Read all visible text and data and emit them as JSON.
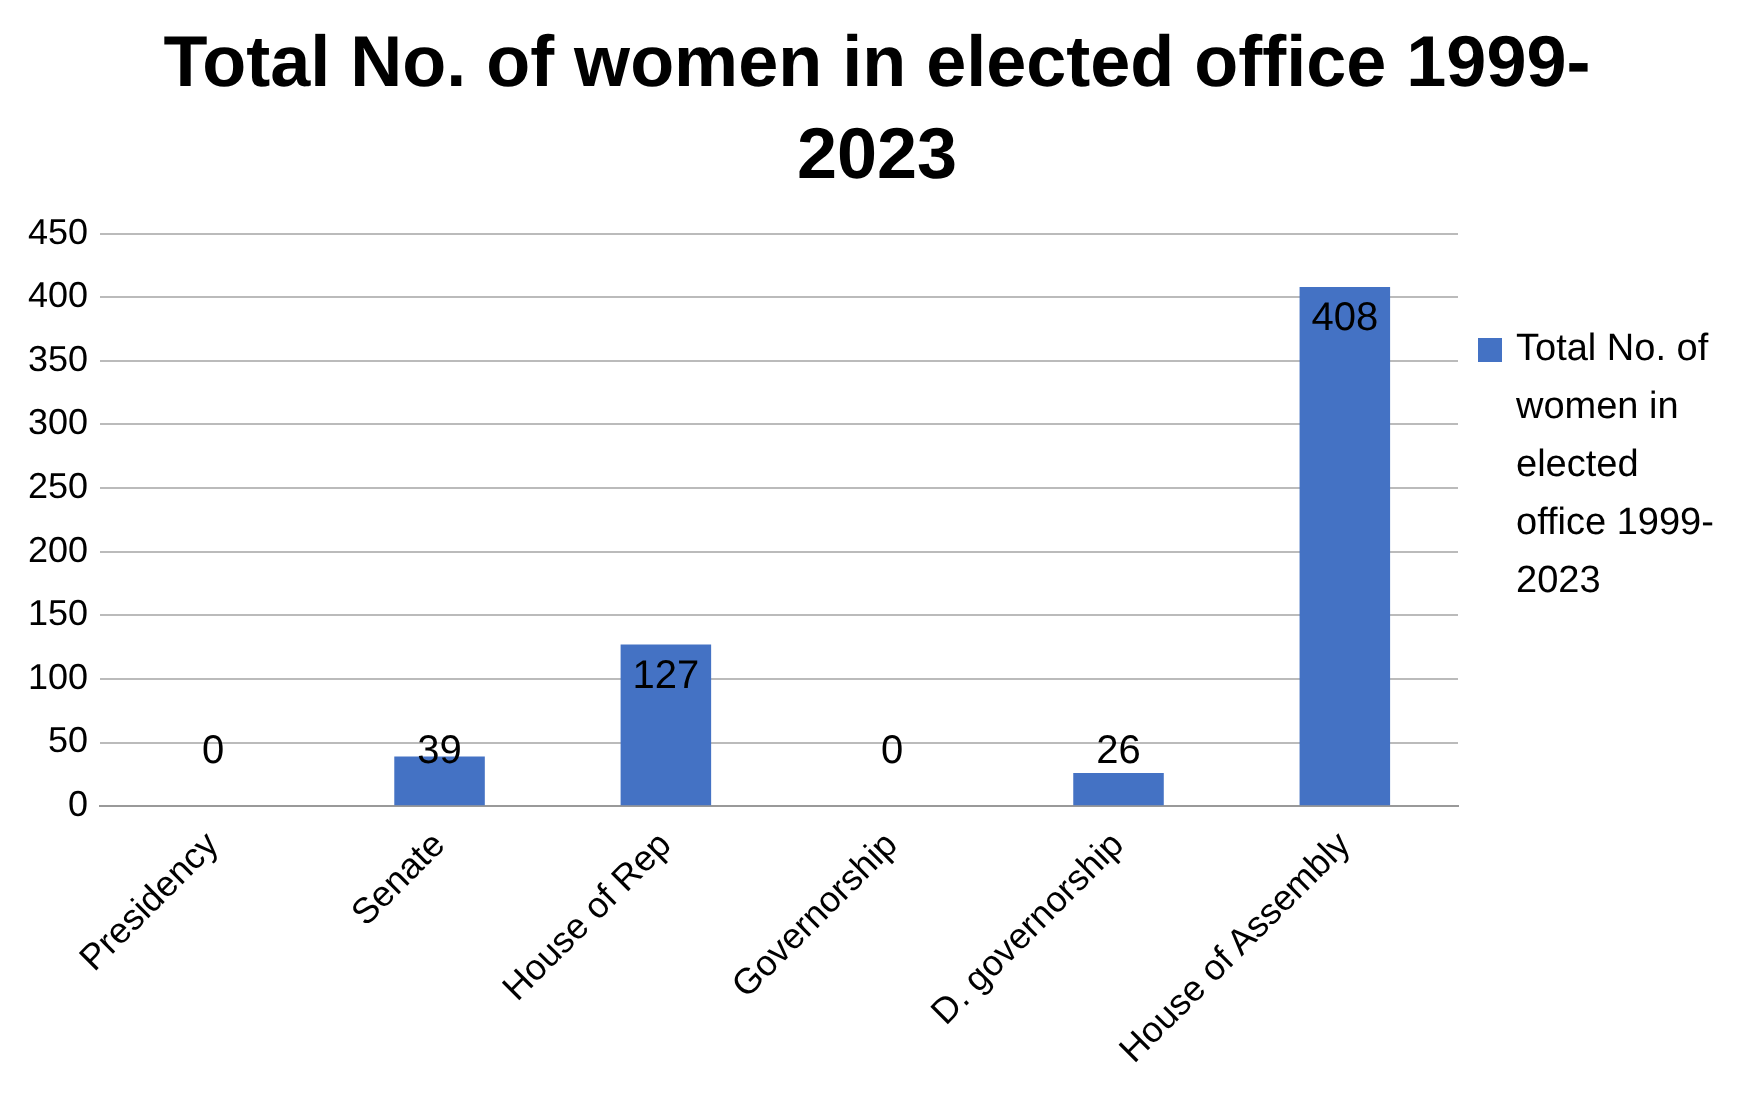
{
  "chart_data": {
    "type": "bar",
    "title": "Total No. of women in elected office 1999-2023",
    "categories": [
      "Presidency",
      "Senate",
      "House of Rep",
      "Governorship",
      "D. governorship",
      "House of Assembly"
    ],
    "series": [
      {
        "name": "Total No. of women in elected office 1999-2023",
        "color": "#4472c4",
        "values": [
          0,
          39,
          127,
          0,
          26,
          408
        ]
      }
    ],
    "ylim": [
      0,
      450
    ],
    "yticks": [
      0,
      50,
      100,
      150,
      200,
      250,
      300,
      350,
      400,
      450
    ],
    "grid": "y",
    "legend": "right",
    "data_labels": true
  }
}
